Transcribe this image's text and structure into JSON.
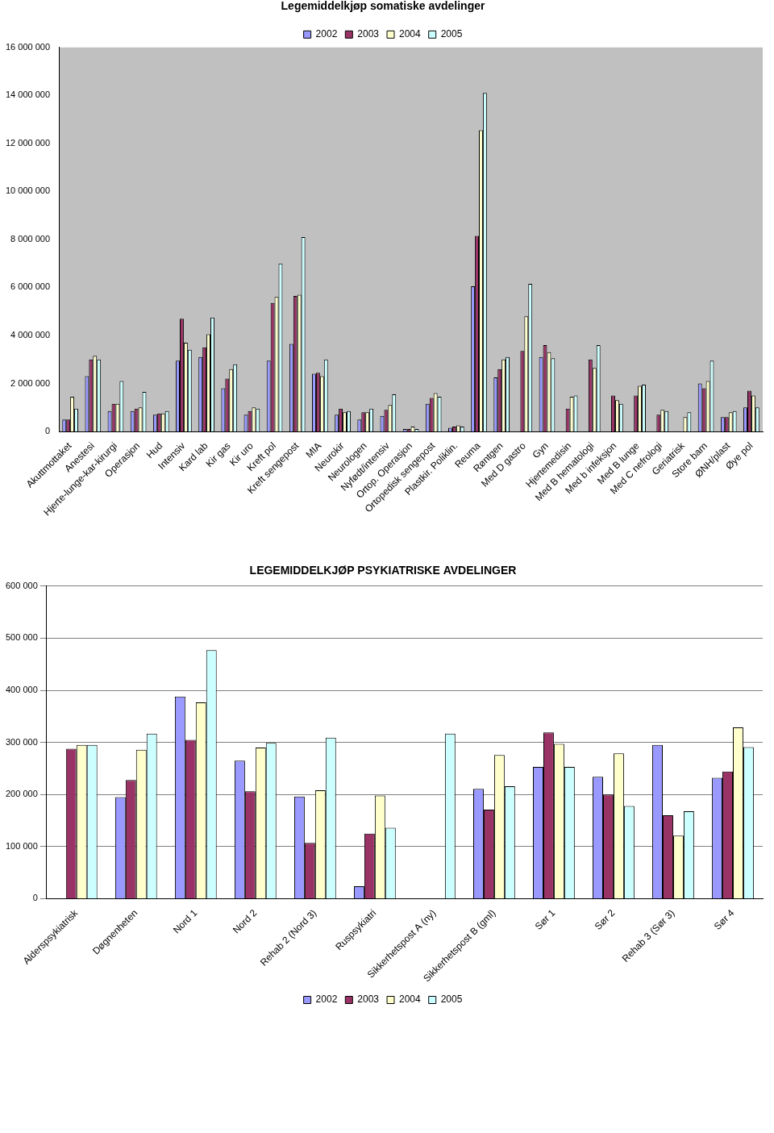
{
  "chart_data": [
    {
      "type": "bar",
      "title": "Legemiddelkjøp somatiske avdelinger",
      "categories": [
        "Akuttmottaket",
        "Anestesi",
        "Hjerte-lunge-kar-kirurgi",
        "Operasjon",
        "Hud",
        "Intensiv",
        "Kard lab",
        "Kir gas",
        "Kir uro",
        "Kreft pol",
        "Kreft sengepost",
        "MIA",
        "Neurokir",
        "Neurologen",
        "Nyfødt/intensiv",
        "Ortop. Operasjon",
        "Ortopedisk sengepost",
        "Plastkir. Poliklin.",
        "Reuma",
        "Røntgen",
        "Med D gastro",
        "Gyn",
        "Hjertemedisin",
        "Med B hematologi",
        "Med b infeksjon",
        "Med B lunge",
        "Med C nefrologi",
        "Geriatrisk",
        "Store barn",
        "ØNH/plast",
        "Øye pol"
      ],
      "series": [
        {
          "name": "2002",
          "color": "#9999ff",
          "values": [
            500000,
            2300000,
            850000,
            850000,
            700000,
            2950000,
            3100000,
            1800000,
            700000,
            2950000,
            3650000,
            2400000,
            700000,
            500000,
            650000,
            100000,
            1150000,
            150000,
            6050000,
            2250000,
            null,
            3100000,
            null,
            null,
            null,
            null,
            null,
            null,
            2000000,
            600000,
            1000000
          ]
        },
        {
          "name": "2003",
          "color": "#993366",
          "values": [
            500000,
            3000000,
            1150000,
            950000,
            750000,
            4700000,
            3500000,
            2200000,
            850000,
            5350000,
            5650000,
            2450000,
            950000,
            800000,
            900000,
            100000,
            1400000,
            200000,
            8150000,
            2600000,
            3350000,
            3600000,
            950000,
            3000000,
            1500000,
            1500000,
            700000,
            null,
            1800000,
            600000,
            1700000
          ]
        },
        {
          "name": "2004",
          "color": "#ffffcc",
          "values": [
            1450000,
            3150000,
            1150000,
            1000000,
            750000,
            3700000,
            4050000,
            2600000,
            1000000,
            5600000,
            5700000,
            2300000,
            800000,
            800000,
            1100000,
            200000,
            1600000,
            250000,
            12550000,
            3000000,
            4800000,
            3300000,
            1450000,
            2650000,
            1300000,
            1900000,
            900000,
            600000,
            2100000,
            800000,
            1500000
          ]
        },
        {
          "name": "2005",
          "color": "#ccffff",
          "values": [
            950000,
            3000000,
            2100000,
            1650000,
            850000,
            3400000,
            4750000,
            2800000,
            950000,
            7000000,
            8100000,
            3000000,
            850000,
            950000,
            1550000,
            100000,
            1450000,
            200000,
            14100000,
            3100000,
            6150000,
            3050000,
            1500000,
            3600000,
            1150000,
            1950000,
            850000,
            800000,
            2950000,
            850000,
            1000000
          ]
        }
      ],
      "ylim": [
        0,
        16000000
      ],
      "yticks": [
        0,
        {
          "value": 2000000,
          "label": "2 000 000"
        },
        {
          "value": 4000000,
          "label": "4 000 000"
        },
        {
          "value": 6000000,
          "label": "6 000 000"
        },
        {
          "value": 8000000,
          "label": "8 000 000"
        },
        {
          "value": 10000000,
          "label": "10 000 000"
        },
        {
          "value": 12000000,
          "label": "12 000 000"
        },
        {
          "value": 14000000,
          "label": "14 000 000"
        },
        {
          "value": 16000000,
          "label": "16 000 000"
        }
      ],
      "grid": false,
      "legend": "top"
    },
    {
      "type": "bar",
      "title": "LEGEMIDDELKJØP PSYKIATRISKE AVDELINGER",
      "categories": [
        "Alderspsykiatrisk",
        "Døgnenheten",
        "Nord 1",
        "Nord 2",
        "Rehab 2 (Nord 3)",
        "Ruspsykiatri",
        "Sikkerhetspost A (ny)",
        "Sikkerhetspost B (gml)",
        "Sør 1",
        "Sør 2",
        "Rehab 3 (Sør 3)",
        "Sør 4"
      ],
      "series": [
        {
          "name": "2002",
          "color": "#9999ff",
          "values": [
            null,
            195000,
            388000,
            265000,
            196000,
            24000,
            null,
            211000,
            253000,
            234000,
            295000,
            232000
          ]
        },
        {
          "name": "2003",
          "color": "#993366",
          "values": [
            288000,
            228000,
            305000,
            206000,
            107000,
            125000,
            null,
            171000,
            319000,
            200000,
            160000,
            244000
          ]
        },
        {
          "name": "2004",
          "color": "#ffffcc",
          "values": [
            295000,
            286000,
            377000,
            290000,
            208000,
            198000,
            null,
            276000,
            297000,
            279000,
            121000,
            329000
          ]
        },
        {
          "name": "2005",
          "color": "#ccffff",
          "values": [
            295000,
            317000,
            477000,
            299000,
            309000,
            136000,
            317000,
            216000,
            253000,
            178000,
            168000,
            291000
          ]
        }
      ],
      "ylim": [
        0,
        600000
      ],
      "yticks": [
        0,
        {
          "value": 100000,
          "label": "100 000"
        },
        {
          "value": 200000,
          "label": "200 000"
        },
        {
          "value": 300000,
          "label": "300 000"
        },
        {
          "value": 400000,
          "label": "400 000"
        },
        {
          "value": 500000,
          "label": "500 000"
        },
        {
          "value": 600000,
          "label": "600 000"
        }
      ],
      "grid": true,
      "legend": "bottom"
    }
  ]
}
